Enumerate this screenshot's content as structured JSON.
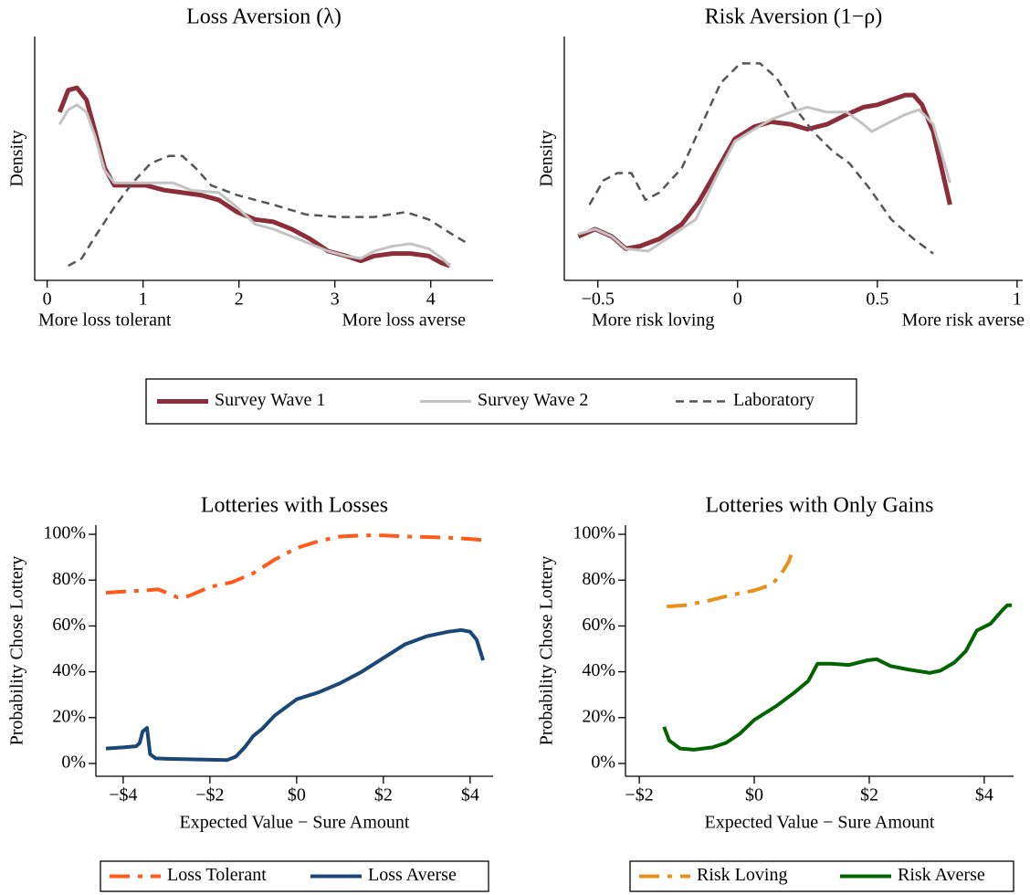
{
  "chart_data": [
    {
      "type": "line",
      "title": "Loss Aversion (λ)",
      "ylabel": "Density",
      "annotations": [
        "More loss tolerant",
        "More loss averse"
      ],
      "xlim": [
        -0.13,
        4.65
      ],
      "xticks": [
        0,
        1,
        2,
        3,
        4
      ],
      "ylim": [
        0,
        1
      ],
      "legend": "bottom",
      "series": [
        {
          "name": "Survey Wave 1",
          "color": "#8b2e3a",
          "linewidth": 5,
          "dash": "solid",
          "x": [
            0.13,
            0.22,
            0.31,
            0.41,
            0.5,
            0.6,
            0.7,
            0.84,
            1.03,
            1.22,
            1.41,
            1.6,
            1.79,
            1.98,
            2.17,
            2.36,
            2.55,
            2.74,
            2.93,
            3.12,
            3.27,
            3.41,
            3.6,
            3.79,
            3.98,
            4.12,
            4.2
          ],
          "values": [
            0.69,
            0.78,
            0.79,
            0.74,
            0.61,
            0.46,
            0.39,
            0.39,
            0.39,
            0.37,
            0.36,
            0.35,
            0.33,
            0.28,
            0.25,
            0.24,
            0.21,
            0.17,
            0.12,
            0.1,
            0.08,
            0.1,
            0.11,
            0.11,
            0.1,
            0.07,
            0.06
          ]
        },
        {
          "name": "Survey Wave 2",
          "color": "#c3c3c3",
          "linewidth": 3,
          "dash": "solid",
          "x": [
            0.13,
            0.22,
            0.31,
            0.41,
            0.5,
            0.6,
            0.7,
            1.03,
            1.31,
            1.5,
            1.79,
            1.98,
            2.17,
            2.36,
            2.55,
            2.74,
            2.93,
            3.12,
            3.27,
            3.41,
            3.6,
            3.79,
            3.98,
            4.12,
            4.2
          ],
          "values": [
            0.64,
            0.7,
            0.72,
            0.69,
            0.59,
            0.45,
            0.4,
            0.4,
            0.4,
            0.37,
            0.36,
            0.3,
            0.23,
            0.21,
            0.18,
            0.15,
            0.12,
            0.1,
            0.09,
            0.12,
            0.14,
            0.15,
            0.13,
            0.09,
            0.06
          ]
        },
        {
          "name": "Laboratory",
          "color": "#555555",
          "linewidth": 2.5,
          "dash": "dash",
          "x": [
            0.22,
            0.36,
            0.5,
            0.7,
            0.89,
            1.08,
            1.27,
            1.41,
            1.55,
            1.71,
            1.98,
            2.36,
            2.7,
            3.03,
            3.41,
            3.74,
            3.98,
            4.22,
            4.39
          ],
          "values": [
            0.06,
            0.09,
            0.18,
            0.3,
            0.4,
            0.48,
            0.51,
            0.51,
            0.46,
            0.39,
            0.35,
            0.31,
            0.27,
            0.26,
            0.26,
            0.28,
            0.25,
            0.19,
            0.15
          ]
        }
      ]
    },
    {
      "type": "line",
      "title": "Risk Aversion (1−ρ)",
      "ylabel": "Density",
      "annotations": [
        "More risk loving",
        "More risk averse"
      ],
      "xlim": [
        -0.62,
        1.02
      ],
      "xticks": [
        {
          "value": -0.5,
          "label": "−0.5"
        },
        0,
        0.5,
        1
      ],
      "ylim": [
        0,
        1
      ],
      "series": [
        {
          "color": "#8b2e3a",
          "linewidth": 5,
          "dash": "solid",
          "x": [
            -0.57,
            -0.51,
            -0.45,
            -0.4,
            -0.35,
            -0.28,
            -0.2,
            -0.14,
            -0.07,
            -0.01,
            0.06,
            0.12,
            0.19,
            0.25,
            0.32,
            0.39,
            0.45,
            0.5,
            0.55,
            0.6,
            0.63,
            0.66,
            0.7,
            0.73,
            0.76
          ],
          "values": [
            0.18,
            0.21,
            0.18,
            0.13,
            0.14,
            0.17,
            0.23,
            0.32,
            0.46,
            0.58,
            0.63,
            0.65,
            0.64,
            0.62,
            0.64,
            0.68,
            0.71,
            0.72,
            0.74,
            0.76,
            0.76,
            0.72,
            0.61,
            0.46,
            0.31
          ]
        },
        {
          "color": "#c3c3c3",
          "linewidth": 3,
          "dash": "solid",
          "x": [
            -0.57,
            -0.51,
            -0.45,
            -0.4,
            -0.32,
            -0.24,
            -0.15,
            -0.07,
            -0.01,
            0.06,
            0.12,
            0.19,
            0.25,
            0.32,
            0.39,
            0.45,
            0.48,
            0.53,
            0.6,
            0.65,
            0.7,
            0.76
          ],
          "values": [
            0.19,
            0.21,
            0.18,
            0.13,
            0.12,
            0.18,
            0.25,
            0.44,
            0.57,
            0.62,
            0.66,
            0.69,
            0.71,
            0.69,
            0.69,
            0.64,
            0.61,
            0.64,
            0.68,
            0.7,
            0.64,
            0.4
          ]
        },
        {
          "color": "#555555",
          "linewidth": 2.5,
          "dash": "dash",
          "x": [
            -0.53,
            -0.48,
            -0.43,
            -0.38,
            -0.33,
            -0.28,
            -0.2,
            -0.12,
            -0.06,
            0.01,
            0.08,
            0.14,
            0.21,
            0.27,
            0.34,
            0.4,
            0.47,
            0.55,
            0.63,
            0.7
          ],
          "values": [
            0.31,
            0.41,
            0.44,
            0.44,
            0.33,
            0.36,
            0.46,
            0.66,
            0.81,
            0.89,
            0.89,
            0.83,
            0.7,
            0.61,
            0.53,
            0.48,
            0.38,
            0.25,
            0.17,
            0.11
          ]
        }
      ]
    },
    {
      "type": "line",
      "title": "Lotteries with Losses",
      "xlabel": "Expected Value − Sure Amount",
      "ylabel": "Probability Chose Lottery",
      "xlim": [
        -4.63,
        4.53
      ],
      "xticks": [
        {
          "value": -4,
          "label": "−$4"
        },
        {
          "value": -2,
          "label": "−$2"
        },
        {
          "value": 0,
          "label": "$0"
        },
        {
          "value": 2,
          "label": "$2"
        },
        {
          "value": 4,
          "label": "$4"
        }
      ],
      "ylim": [
        -5.6,
        104
      ],
      "yticks": [
        {
          "value": 0,
          "label": "0%"
        },
        {
          "value": 20,
          "label": "20%"
        },
        {
          "value": 40,
          "label": "40%"
        },
        {
          "value": 60,
          "label": "60%"
        },
        {
          "value": 80,
          "label": "80%"
        },
        {
          "value": 100,
          "label": "100%"
        }
      ],
      "legend": "bottom",
      "series": [
        {
          "name": "Loss Tolerant",
          "color": "#ff5a1a",
          "linewidth": 4,
          "dash": "dashdot",
          "x": [
            -4.4,
            -4,
            -3.5,
            -3.2,
            -3,
            -2.75,
            -2.5,
            -2,
            -1.5,
            -1,
            -0.5,
            0,
            0.5,
            1,
            1.5,
            2,
            2.5,
            3,
            3.5,
            4,
            4.27
          ],
          "values": [
            74.5,
            75,
            75.5,
            76,
            74.5,
            72.5,
            73,
            77,
            79,
            83,
            89,
            94,
            97,
            99,
            99.5,
            99.5,
            99,
            98.8,
            98.5,
            98,
            97.5
          ]
        },
        {
          "name": "Loss Averse",
          "color": "#1a4775",
          "linewidth": 4,
          "dash": "solid",
          "x": [
            -4.4,
            -4,
            -3.7,
            -3.62,
            -3.55,
            -3.45,
            -3.38,
            -3.25,
            -3,
            -2.5,
            -2,
            -1.6,
            -1.4,
            -1.2,
            -1,
            -0.8,
            -0.5,
            0,
            0.5,
            1,
            1.5,
            2,
            2.5,
            3,
            3.5,
            3.8,
            4.0,
            4.15,
            4.3
          ],
          "values": [
            6.5,
            7,
            7.5,
            9,
            14,
            15.5,
            4,
            2.2,
            2,
            1.8,
            1.6,
            1.5,
            3,
            7,
            12,
            15,
            21,
            28,
            31,
            35,
            40,
            46,
            52,
            55.5,
            57.5,
            58.2,
            57.5,
            54,
            45
          ]
        }
      ]
    },
    {
      "type": "line",
      "title": "Lotteries with Only Gains",
      "xlabel": "Expected Value − Sure Amount",
      "ylabel": "Probability Chose Lottery",
      "xlim": [
        -2.24,
        4.51
      ],
      "xticks": [
        {
          "value": -2,
          "label": "−$2"
        },
        {
          "value": 0,
          "label": "$0"
        },
        {
          "value": 2,
          "label": "$2"
        },
        {
          "value": 4,
          "label": "$4"
        }
      ],
      "ylim": [
        -5.6,
        104
      ],
      "yticks": [
        {
          "value": 0,
          "label": "0%"
        },
        {
          "value": 20,
          "label": "20%"
        },
        {
          "value": 40,
          "label": "40%"
        },
        {
          "value": 60,
          "label": "60%"
        },
        {
          "value": 80,
          "label": "80%"
        },
        {
          "value": 100,
          "label": "100%"
        }
      ],
      "legend": "bottom",
      "series": [
        {
          "name": "Risk Loving",
          "color": "#e8901a",
          "linewidth": 4,
          "dash": "dashdot",
          "x": [
            -1.52,
            -1.2,
            -0.8,
            -0.4,
            0,
            0.3,
            0.45,
            0.6,
            0.68
          ],
          "values": [
            68.5,
            69,
            71,
            73.5,
            75.5,
            78,
            82,
            88,
            94
          ]
        },
        {
          "name": "Risk Averse",
          "color": "#006400",
          "linewidth": 4,
          "dash": "solid",
          "x": [
            -1.57,
            -1.48,
            -1.29,
            -1.05,
            -0.73,
            -0.49,
            -0.25,
            0,
            0.38,
            0.7,
            0.94,
            1.1,
            1.33,
            1.65,
            1.97,
            2.13,
            2.37,
            2.68,
            3.05,
            3.24,
            3.48,
            3.68,
            3.87,
            4.11,
            4.32,
            4.4,
            4.48
          ],
          "values": [
            16,
            10,
            6.5,
            6,
            7,
            9,
            13,
            19,
            25,
            31,
            36,
            43.5,
            43.5,
            43,
            45,
            45.5,
            42.5,
            41,
            39.5,
            40.5,
            44,
            49,
            58,
            61,
            67,
            69,
            69
          ]
        }
      ]
    }
  ]
}
